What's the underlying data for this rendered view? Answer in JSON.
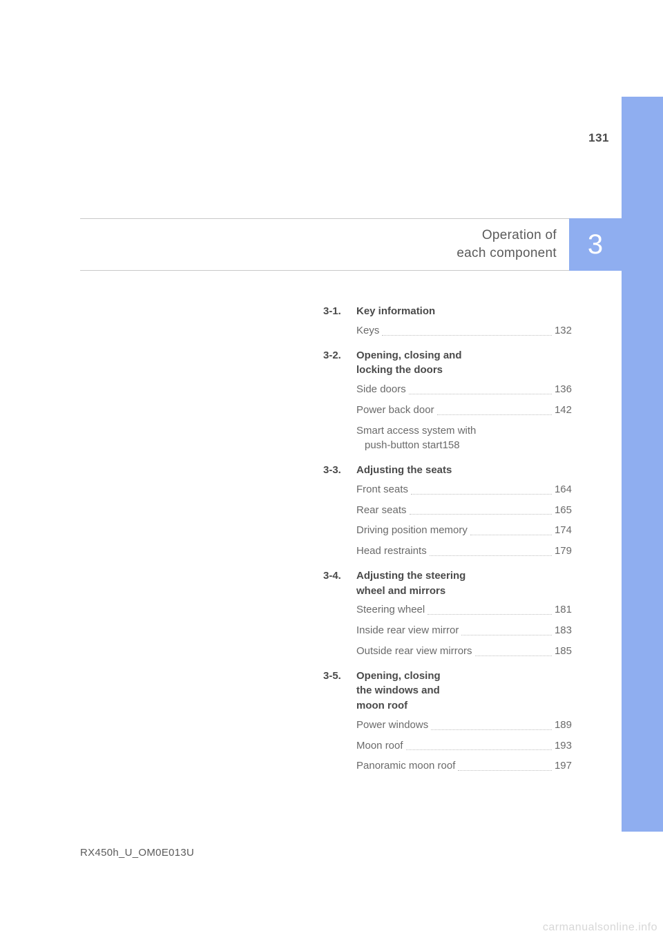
{
  "page_number": "131",
  "chapter": {
    "title_line1": "Operation of",
    "title_line2": "each component",
    "number": "3"
  },
  "toc": [
    {
      "num": "3-1.",
      "title": "Key information",
      "items": [
        {
          "label": "Keys",
          "page": "132"
        }
      ]
    },
    {
      "num": "3-2.",
      "title": "Opening, closing and locking the doors",
      "items": [
        {
          "label": "Side doors",
          "page": "136"
        },
        {
          "label": "Power back door",
          "page": "142"
        },
        {
          "label": "Smart access system with",
          "label2": "push-button start",
          "page": "158",
          "multi": true
        }
      ]
    },
    {
      "num": "3-3.",
      "title": "Adjusting the seats",
      "items": [
        {
          "label": "Front seats",
          "page": "164"
        },
        {
          "label": "Rear seats",
          "page": "165"
        },
        {
          "label": "Driving position memory",
          "page": "174"
        },
        {
          "label": "Head restraints",
          "page": "179"
        }
      ]
    },
    {
      "num": "3-4.",
      "title": "Adjusting the steering wheel and mirrors",
      "items": [
        {
          "label": "Steering wheel",
          "page": "181"
        },
        {
          "label": "Inside rear view mirror",
          "page": "183"
        },
        {
          "label": "Outside rear view mirrors",
          "page": "185"
        }
      ]
    },
    {
      "num": "3-5.",
      "title": "Opening, closing the windows and moon roof",
      "items": [
        {
          "label": "Power windows",
          "page": "189"
        },
        {
          "label": "Moon roof",
          "page": "193"
        },
        {
          "label": "Panoramic moon roof",
          "page": "197"
        }
      ]
    }
  ],
  "footer_code": "RX450h_U_OM0E013U",
  "watermark": "carmanualsonline.info",
  "colors": {
    "accent": "#8faef0",
    "text": "#5a5a5a",
    "heading": "#4a4a4a",
    "dots": "#bdbdbd",
    "watermark": "#d7d7d7"
  }
}
